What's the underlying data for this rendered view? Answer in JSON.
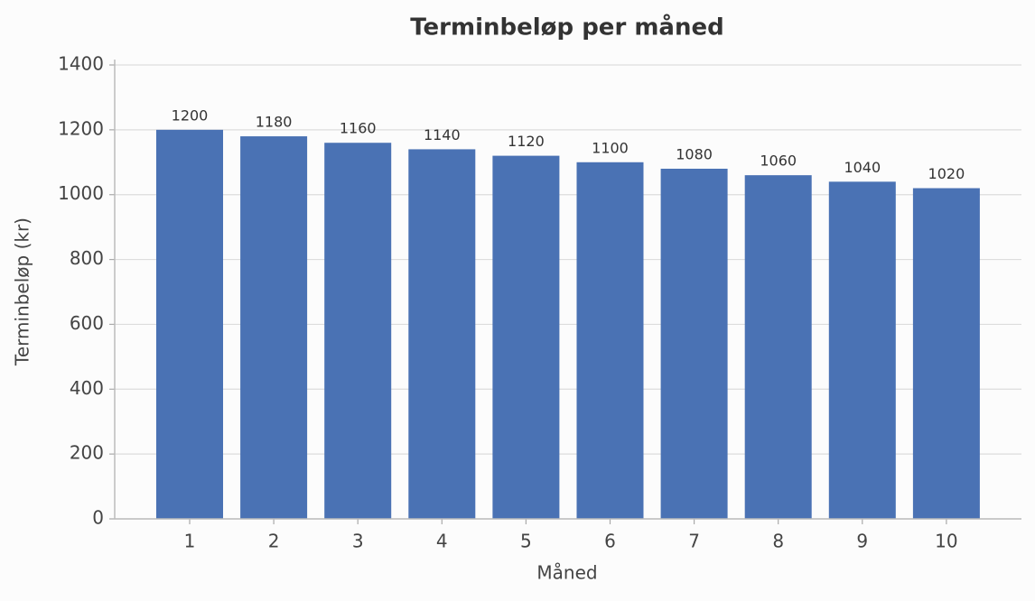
{
  "chart_data": {
    "type": "bar",
    "title": "Terminbeløp per måned",
    "x_label": "Måned",
    "y_label": "Terminbeløp (kr)",
    "categories": [
      "1",
      "2",
      "3",
      "4",
      "5",
      "6",
      "7",
      "8",
      "9",
      "10"
    ],
    "values": [
      1200,
      1180,
      1160,
      1140,
      1120,
      1100,
      1080,
      1060,
      1040,
      1020
    ],
    "color": "#4a72b4",
    "ylim": [
      0,
      1400
    ],
    "yticks": [
      0,
      200,
      400,
      600,
      800,
      1000,
      1200,
      1400
    ],
    "grid": true
  }
}
